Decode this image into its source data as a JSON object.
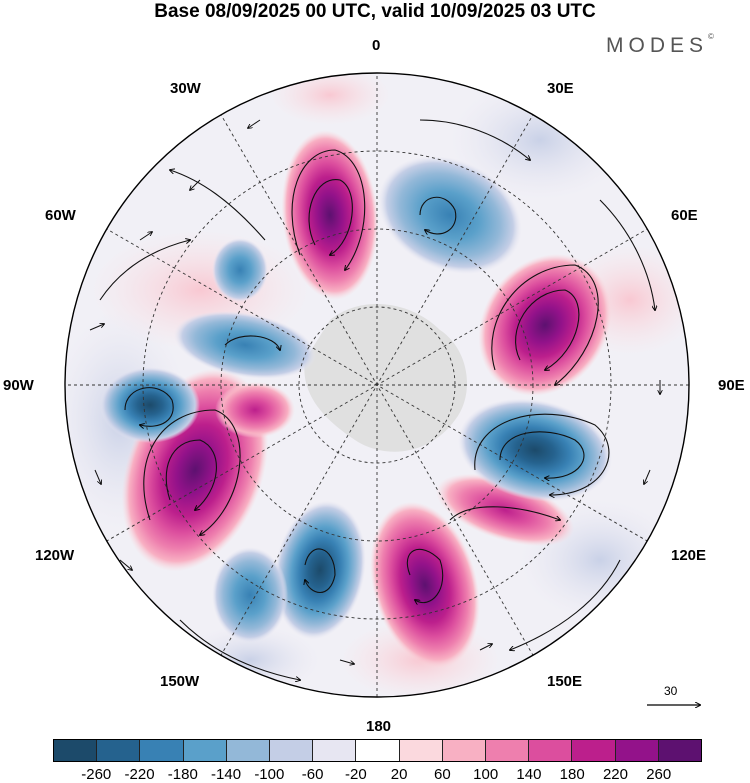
{
  "title": "Base 08/09/2025 00 UTC, valid 10/09/2025 03 UTC",
  "brand": "MODES",
  "brand_mark": "©",
  "longitude_labels": {
    "lon_0": "0",
    "lon_30e": "30E",
    "lon_60e": "60E",
    "lon_90e": "90E",
    "lon_120e": "120E",
    "lon_150e": "150E",
    "lon_180": "180",
    "lon_150w": "150W",
    "lon_120w": "120W",
    "lon_90w": "90W",
    "lon_60w": "60W",
    "lon_30w": "30W"
  },
  "reference_vector": "30",
  "colorbar": {
    "colors": [
      "#1c4a6a",
      "#25628e",
      "#3881b4",
      "#5aa0ca",
      "#93b8d8",
      "#c4cee6",
      "#e7e6f2",
      "#ffffff",
      "#fbd9de",
      "#f8b0c3",
      "#ee7fae",
      "#dc4e9e",
      "#bc1f8c",
      "#93128a",
      "#5d1170"
    ],
    "ticks": [
      "-260",
      "-220",
      "-180",
      "-140",
      "-100",
      "-60",
      "-20",
      "20",
      "60",
      "100",
      "140",
      "180",
      "220",
      "260"
    ]
  },
  "map": {
    "projection": "south-polar-stereographic",
    "ring_color": "#000000",
    "land_color": "#d9d9d9"
  }
}
